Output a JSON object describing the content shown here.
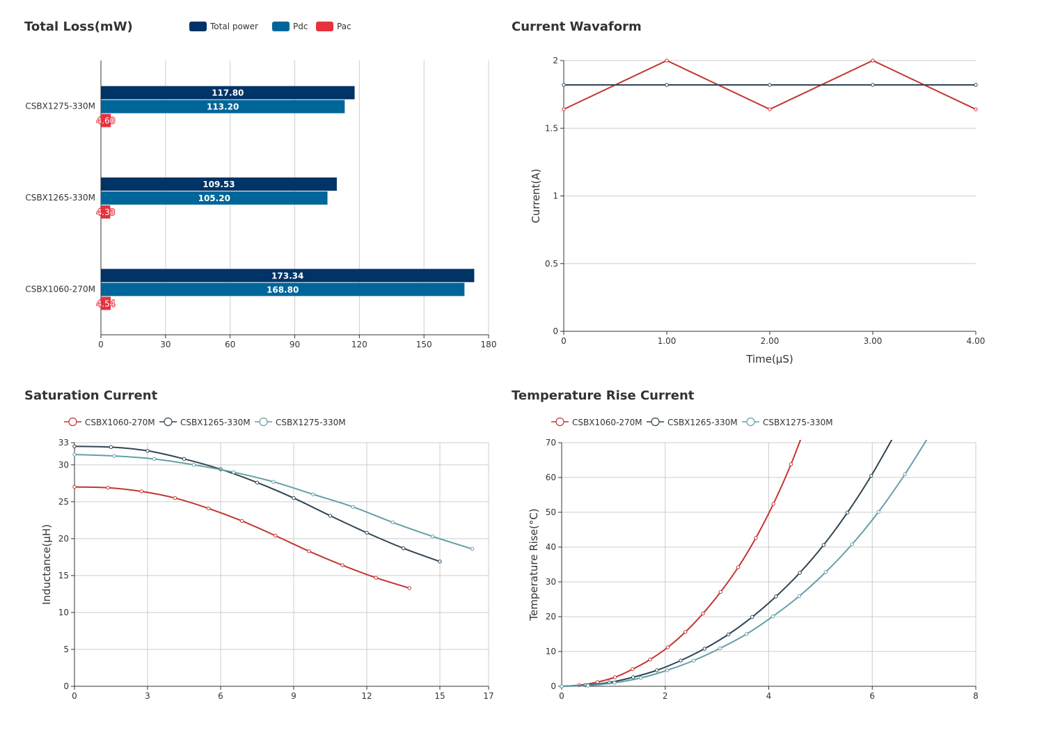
{
  "charts_titles": {
    "total_loss": "Total Loss(mW)",
    "current_waveform": "Current Wavaform",
    "saturation": "Saturation Current",
    "temperature": "Temperature Rise Current"
  },
  "colors": {
    "total_power": "#003366",
    "pdc": "#006699",
    "pac": "#e5323e",
    "red_line": "#c23531",
    "dark_line": "#2f4554",
    "teal_line": "#61a0a8"
  },
  "chart_data": [
    {
      "id": "total_loss",
      "type": "bar",
      "orientation": "horizontal",
      "title": "Total Loss(mW)",
      "categories": [
        "CSBX1275-330M",
        "CSBX1265-330M",
        "CSBX1060-270M"
      ],
      "series": [
        {
          "name": "Total power",
          "values": [
            117.8,
            109.53,
            173.34
          ],
          "labels": [
            "117.80",
            "109.53",
            "173.34"
          ]
        },
        {
          "name": "Pdc",
          "values": [
            113.2,
            105.2,
            168.8
          ],
          "labels": [
            "113.20",
            "105.20",
            "168.80"
          ]
        },
        {
          "name": "Pac",
          "values": [
            4.6,
            4.33,
            4.54
          ],
          "labels": [
            "4.60",
            "4.33",
            "4.54"
          ]
        }
      ],
      "xlim": [
        0,
        180
      ],
      "xticks": [
        "0",
        "30",
        "60",
        "90",
        "120",
        "150",
        "180"
      ],
      "grid": true,
      "legend": "top"
    },
    {
      "id": "current_waveform",
      "type": "line",
      "title": "Current Wavaform",
      "xlabel": "Time(μS)",
      "ylabel": "Current(A)",
      "xlim": [
        0,
        4
      ],
      "ylim": [
        0,
        2
      ],
      "xticks": [
        "0",
        "1.00",
        "2.00",
        "3.00",
        "4.00"
      ],
      "yticks": [
        "0",
        "0.5",
        "1",
        "1.5",
        "2"
      ],
      "smooth": false,
      "series": [
        {
          "x": [
            0,
            1,
            2,
            3,
            4
          ],
          "y": [
            1.64,
            2,
            1.64,
            2,
            1.64
          ]
        },
        {
          "x": [
            0,
            1,
            2,
            3,
            4
          ],
          "y": [
            1.82,
            1.82,
            1.82,
            1.82,
            1.82
          ]
        }
      ],
      "grid": "horizontal"
    },
    {
      "id": "saturation",
      "type": "line",
      "title": "Saturation Current",
      "ylabel": "Inductance(μH)",
      "xlim": [
        0,
        17
      ],
      "ylim": [
        0,
        33
      ],
      "xticks": [
        "0",
        "3",
        "6",
        "9",
        "12",
        "15",
        "17"
      ],
      "yticks": [
        "0",
        "5",
        "10",
        "15",
        "20",
        "25",
        "30",
        "33"
      ],
      "smooth": true,
      "legend": "top-left",
      "series": [
        {
          "name": "CSBX1060-270M",
          "x": [
            0,
            1.375,
            2.75,
            4.125,
            5.5,
            6.875,
            8.25,
            9.625,
            11.0,
            12.375,
            13.75
          ],
          "y": [
            27.0,
            26.9,
            26.4,
            25.5,
            24.1,
            22.4,
            20.4,
            18.3,
            16.4,
            14.7,
            13.3
          ]
        },
        {
          "name": "CSBX1265-330M",
          "x": [
            0,
            1.5,
            3,
            4.5,
            6,
            7.5,
            9,
            10.5,
            12,
            13.5,
            15
          ],
          "y": [
            32.5,
            32.4,
            31.9,
            30.8,
            29.4,
            27.6,
            25.5,
            23.1,
            20.8,
            18.7,
            16.9
          ]
        },
        {
          "name": "CSBX1275-330M",
          "x": [
            0,
            1.633,
            3.267,
            4.9,
            6.533,
            8.167,
            9.8,
            11.433,
            13.067,
            14.7,
            16.333
          ],
          "y": [
            31.4,
            31.2,
            30.8,
            30.0,
            29.0,
            27.7,
            26.0,
            24.3,
            22.2,
            20.3,
            18.6
          ]
        }
      ],
      "grid": true
    },
    {
      "id": "temperature",
      "type": "line",
      "title": "Temperature Rise Current",
      "ylabel": "Temperature Rise(°C)",
      "xlim": [
        0,
        8
      ],
      "ylim": [
        0,
        70
      ],
      "xticks": [
        "0",
        "2",
        "4",
        "6",
        "8"
      ],
      "yticks": [
        "0",
        "10",
        "20",
        "30",
        "40",
        "50",
        "60",
        "70"
      ],
      "smooth": true,
      "legend": "top-left",
      "series": [
        {
          "name": "CSBX1060-270M",
          "x": [
            0,
            0.34,
            0.69,
            1.03,
            1.37,
            1.71,
            2.05,
            2.39,
            2.73,
            3.07,
            3.41,
            3.75,
            4.09,
            4.43,
            4.77
          ],
          "y": [
            0,
            0.3,
            1.2,
            2.6,
            4.9,
            7.7,
            11.2,
            15.6,
            20.9,
            27.1,
            34.2,
            42.6,
            52.4,
            63.8,
            77.0
          ]
        },
        {
          "name": "CSBX1265-330M",
          "x": [
            0,
            0.46,
            0.92,
            1.38,
            1.84,
            2.3,
            2.76,
            3.22,
            3.68,
            4.14,
            4.6,
            5.06,
            5.52,
            5.98,
            6.44
          ],
          "y": [
            0,
            0.3,
            1.1,
            2.6,
            4.6,
            7.4,
            10.8,
            14.9,
            19.9,
            25.8,
            32.6,
            40.6,
            49.9,
            60.5,
            72.5
          ]
        },
        {
          "name": "CSBX1275-330M",
          "x": [
            0,
            0.51,
            1.02,
            1.53,
            2.04,
            2.55,
            3.06,
            3.57,
            4.08,
            4.59,
            5.1,
            5.61,
            6.12,
            6.63,
            7.14
          ],
          "y": [
            0,
            0.2,
            1.0,
            2.4,
            4.6,
            7.4,
            10.9,
            15.0,
            20.1,
            25.9,
            32.8,
            40.8,
            50.1,
            60.9,
            73.0
          ]
        }
      ],
      "grid": true
    }
  ]
}
